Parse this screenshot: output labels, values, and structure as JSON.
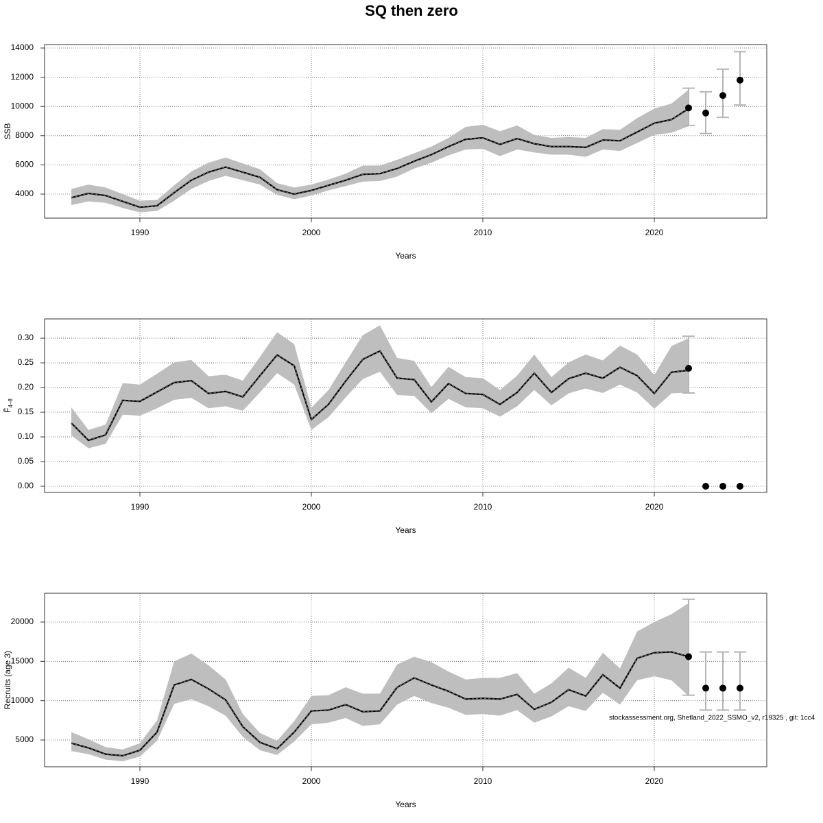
{
  "title": "SQ then zero",
  "footer": "stockassessment.org, Shetland_2022_SSMO_v2, r19325 , git: 1cc4",
  "chart_data": [
    {
      "type": "line",
      "ylabel": "SSB",
      "xlabel": "Years",
      "x": [
        1986,
        1987,
        1988,
        1989,
        1990,
        1991,
        1992,
        1993,
        1994,
        1995,
        1996,
        1997,
        1998,
        1999,
        2000,
        2001,
        2002,
        2003,
        2004,
        2005,
        2006,
        2007,
        2008,
        2009,
        2010,
        2011,
        2012,
        2013,
        2014,
        2015,
        2016,
        2017,
        2018,
        2019,
        2020,
        2021,
        2022
      ],
      "values": [
        3750,
        4050,
        3900,
        3500,
        3100,
        3200,
        4100,
        4950,
        5500,
        5850,
        5500,
        5150,
        4300,
        4000,
        4250,
        4600,
        4950,
        5350,
        5400,
        5750,
        6250,
        6700,
        7250,
        7750,
        7850,
        7400,
        7800,
        7450,
        7250,
        7250,
        7200,
        7700,
        7650,
        8250,
        8850,
        9100,
        9850
      ],
      "low": [
        3250,
        3500,
        3400,
        3050,
        2750,
        2850,
        3550,
        4350,
        4900,
        5250,
        4950,
        4650,
        3950,
        3650,
        3900,
        4250,
        4550,
        4850,
        4900,
        5200,
        5750,
        6150,
        6650,
        7050,
        7100,
        6600,
        7050,
        6850,
        6700,
        6700,
        6550,
        7050,
        6950,
        7500,
        8050,
        8200,
        8650
      ],
      "high": [
        4350,
        4650,
        4450,
        4000,
        3550,
        3600,
        4600,
        5550,
        6150,
        6500,
        6100,
        5700,
        4750,
        4450,
        4650,
        5000,
        5400,
        5950,
        5950,
        6350,
        6800,
        7250,
        7850,
        8600,
        8750,
        8300,
        8700,
        8050,
        7850,
        7900,
        7850,
        8450,
        8400,
        9200,
        9850,
        10200,
        11150
      ],
      "forecast": {
        "x": [
          2022,
          2023,
          2024,
          2025
        ],
        "values": [
          9900,
          9550,
          10750,
          11800
        ],
        "low": [
          8700,
          8150,
          9250,
          10100
        ],
        "high": [
          11250,
          11000,
          12550,
          13750
        ]
      },
      "xlim": [
        1984.44,
        2026.56
      ],
      "xticks": [
        1990,
        2000,
        2010,
        2020
      ],
      "ylim": [
        2357,
        14235
      ],
      "yticks": [
        4000,
        6000,
        8000,
        10000,
        12000,
        14000
      ],
      "grid": true,
      "line_color": "#000000",
      "band_color": "#bebebe",
      "errorbar_color": "#b4b4b4"
    },
    {
      "type": "line",
      "ylabel": "F̄",
      "ylabel_subscript": "4–8",
      "xlabel": "Years",
      "x": [
        1986,
        1987,
        1988,
        1989,
        1990,
        1991,
        1992,
        1993,
        1994,
        1995,
        1996,
        1997,
        1998,
        1999,
        2000,
        2001,
        2002,
        2003,
        2004,
        2005,
        2006,
        2007,
        2008,
        2009,
        2010,
        2011,
        2012,
        2013,
        2014,
        2015,
        2016,
        2017,
        2018,
        2019,
        2020,
        2021,
        2022
      ],
      "values": [
        0.128,
        0.093,
        0.104,
        0.174,
        0.172,
        0.191,
        0.21,
        0.214,
        0.188,
        0.192,
        0.181,
        0.224,
        0.266,
        0.244,
        0.135,
        0.166,
        0.213,
        0.257,
        0.274,
        0.219,
        0.216,
        0.171,
        0.208,
        0.188,
        0.186,
        0.166,
        0.19,
        0.229,
        0.19,
        0.218,
        0.229,
        0.219,
        0.241,
        0.224,
        0.188,
        0.231,
        0.235
      ],
      "low": [
        0.103,
        0.077,
        0.086,
        0.145,
        0.143,
        0.158,
        0.175,
        0.179,
        0.158,
        0.162,
        0.153,
        0.19,
        0.229,
        0.206,
        0.114,
        0.14,
        0.18,
        0.217,
        0.232,
        0.185,
        0.183,
        0.148,
        0.177,
        0.16,
        0.158,
        0.141,
        0.162,
        0.195,
        0.164,
        0.188,
        0.198,
        0.189,
        0.206,
        0.19,
        0.157,
        0.188,
        0.19
      ],
      "high": [
        0.16,
        0.114,
        0.125,
        0.209,
        0.206,
        0.228,
        0.251,
        0.256,
        0.223,
        0.226,
        0.214,
        0.262,
        0.312,
        0.288,
        0.159,
        0.195,
        0.251,
        0.306,
        0.326,
        0.26,
        0.254,
        0.201,
        0.242,
        0.221,
        0.219,
        0.195,
        0.224,
        0.267,
        0.221,
        0.251,
        0.267,
        0.255,
        0.285,
        0.267,
        0.225,
        0.284,
        0.3
      ],
      "forecast": {
        "x": [
          2022,
          2023,
          2024,
          2025
        ],
        "values": [
          0.239,
          0,
          0,
          0
        ],
        "low": [
          0.189,
          null,
          null,
          null
        ],
        "high": [
          0.304,
          null,
          null,
          null
        ]
      },
      "xlim": [
        1984.44,
        2026.56
      ],
      "xticks": [
        1990,
        2000,
        2010,
        2020
      ],
      "ylim": [
        -0.0125,
        0.339
      ],
      "yticks": [
        {
          "value": 0,
          "label": "0.00"
        },
        0.05,
        {
          "value": 0.1,
          "label": "0.10"
        },
        0.15,
        {
          "value": 0.2,
          "label": "0.20"
        },
        0.25,
        {
          "value": 0.3,
          "label": "0.30"
        }
      ],
      "grid": true,
      "line_color": "#000000",
      "band_color": "#bebebe",
      "errorbar_color": "#b4b4b4"
    },
    {
      "type": "line",
      "ylabel": "Recruits (age 3)",
      "xlabel": "Years",
      "x": [
        1986,
        1987,
        1988,
        1989,
        1990,
        1991,
        1992,
        1993,
        1994,
        1995,
        1996,
        1997,
        1998,
        1999,
        2000,
        2001,
        2002,
        2003,
        2004,
        2005,
        2006,
        2007,
        2008,
        2009,
        2010,
        2011,
        2012,
        2013,
        2014,
        2015,
        2016,
        2017,
        2018,
        2019,
        2020,
        2021,
        2022
      ],
      "values": [
        4600,
        4000,
        3200,
        3000,
        3700,
        6000,
        12000,
        12700,
        11500,
        10100,
        6700,
        4700,
        3900,
        6000,
        8700,
        8800,
        9500,
        8600,
        8700,
        11700,
        12900,
        12000,
        11200,
        10200,
        10300,
        10200,
        10800,
        8900,
        9800,
        11400,
        10600,
        13300,
        11600,
        15400,
        16100,
        16200,
        15600
      ],
      "low": [
        3600,
        3200,
        2500,
        2300,
        2900,
        4900,
        9600,
        10200,
        9300,
        8100,
        5400,
        3700,
        3100,
        4800,
        7000,
        7200,
        7800,
        6800,
        7000,
        9500,
        10600,
        9700,
        9100,
        8200,
        8300,
        8100,
        8800,
        7200,
        8000,
        9300,
        8700,
        11000,
        9500,
        12600,
        13100,
        12600,
        10600
      ],
      "high": [
        6000,
        5100,
        4100,
        3800,
        4600,
        7500,
        15000,
        16000,
        14500,
        12700,
        8300,
        5900,
        4900,
        7400,
        10600,
        10700,
        11700,
        10900,
        10900,
        14600,
        15600,
        14900,
        13700,
        12700,
        12900,
        12900,
        13500,
        10900,
        12200,
        14200,
        12900,
        16100,
        14100,
        18800,
        20000,
        21000,
        22400
      ],
      "forecast": {
        "x": [
          2022,
          2023,
          2024,
          2025
        ],
        "values": [
          15600,
          11600,
          11600,
          11600
        ],
        "low": [
          10700,
          8800,
          8800,
          8800
        ],
        "high": [
          22900,
          16200,
          16200,
          16200
        ]
      },
      "xlim": [
        1984.44,
        2026.56
      ],
      "xticks": [
        1990,
        2000,
        2010,
        2020
      ],
      "ylim": [
        1600,
        23662
      ],
      "yticks": [
        5000,
        10000,
        15000,
        20000
      ],
      "grid": true,
      "line_color": "#000000",
      "band_color": "#bebebe",
      "errorbar_color": "#b4b4b4"
    }
  ]
}
